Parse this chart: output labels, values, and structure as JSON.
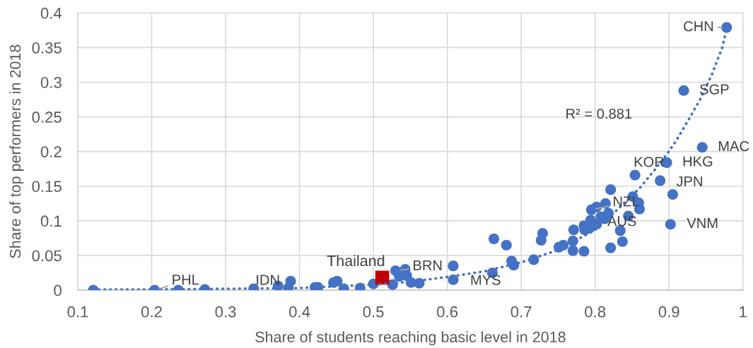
{
  "chart_data": {
    "type": "scatter",
    "xlabel": "Share of students reaching basic level in 2018",
    "ylabel": "Share of top performers in 2018",
    "xlim": [
      0.1,
      1
    ],
    "ylim": [
      0,
      0.4
    ],
    "xticks": [
      0.1,
      0.2,
      0.3,
      0.4,
      0.5,
      0.6,
      0.7,
      0.8,
      0.9,
      1
    ],
    "yticks": [
      0,
      0.05,
      0.1,
      0.15,
      0.2,
      0.25,
      0.3,
      0.35,
      0.4
    ],
    "grid": true,
    "marker": "circle",
    "series": [
      {
        "type": "scatter",
        "color": "#4472c4",
        "x": [
          0.121,
          0.204,
          0.236,
          0.272,
          0.338,
          0.371,
          0.385,
          0.388,
          0.421,
          0.425,
          0.446,
          0.451,
          0.46,
          0.482,
          0.5,
          0.526,
          0.53,
          0.535,
          0.543,
          0.545,
          0.551,
          0.562,
          0.608,
          0.608,
          0.661,
          0.663,
          0.68,
          0.687,
          0.69,
          0.717,
          0.727,
          0.729,
          0.751,
          0.757,
          0.77,
          0.77,
          0.771,
          0.785,
          0.785,
          0.786,
          0.792,
          0.794,
          0.802,
          0.795,
          0.802,
          0.814,
          0.808,
          0.813,
          0.818,
          0.821,
          0.821,
          0.834,
          0.837,
          0.845,
          0.851,
          0.859,
          0.86,
          0.854,
          0.888,
          0.905,
          0.902,
          0.897,
          0.945,
          0.92,
          0.978
        ],
        "values": [
          0.0,
          0.0,
          0.0,
          0.001,
          0.002,
          0.006,
          0.003,
          0.013,
          0.004,
          0.004,
          0.011,
          0.013,
          0.002,
          0.003,
          0.009,
          0.008,
          0.028,
          0.02,
          0.03,
          0.021,
          0.011,
          0.01,
          0.035,
          0.015,
          0.025,
          0.074,
          0.065,
          0.042,
          0.036,
          0.044,
          0.072,
          0.082,
          0.062,
          0.065,
          0.071,
          0.057,
          0.087,
          0.056,
          0.093,
          0.087,
          0.089,
          0.101,
          0.095,
          0.116,
          0.12,
          0.125,
          0.106,
          0.103,
          0.111,
          0.145,
          0.061,
          0.086,
          0.07,
          0.107,
          0.135,
          0.126,
          0.117,
          0.166,
          0.158,
          0.138,
          0.095,
          0.184,
          0.206,
          0.288,
          0.379
        ]
      },
      {
        "type": "scatter",
        "name": "Thailand",
        "color": "#c00000",
        "marker": "square",
        "x": [
          0.512
        ],
        "values": [
          0.018
        ]
      },
      {
        "type": "line",
        "color": "#4472c4",
        "line_style": "dotted",
        "marker": "none",
        "x": [
          0.121,
          0.2,
          0.3,
          0.4,
          0.5,
          0.55,
          0.6,
          0.65,
          0.7,
          0.75,
          0.8,
          0.827,
          0.861,
          0.881,
          0.897,
          0.91,
          0.926,
          0.942,
          0.958,
          0.972,
          0.978
        ],
        "values": [
          0.001,
          0.001,
          0.002,
          0.003,
          0.008,
          0.012,
          0.019,
          0.027,
          0.04,
          0.058,
          0.087,
          0.113,
          0.148,
          0.174,
          0.196,
          0.216,
          0.245,
          0.275,
          0.311,
          0.35,
          0.377
        ]
      }
    ],
    "annotations": [
      {
        "text": "CHN",
        "x": 0.978,
        "y": 0.379
      },
      {
        "text": "SGP",
        "x": 0.92,
        "y": 0.288
      },
      {
        "text": "MAC",
        "x": 0.945,
        "y": 0.206
      },
      {
        "text": "KOR",
        "x": 0.854,
        "y": 0.166
      },
      {
        "text": "HKG",
        "x": 0.897,
        "y": 0.184
      },
      {
        "text": "JPN",
        "x": 0.905,
        "y": 0.138
      },
      {
        "text": "NZL",
        "x": 0.795,
        "y": 0.116
      },
      {
        "text": "AUS",
        "x": 0.808,
        "y": 0.106
      },
      {
        "text": "VNM",
        "x": 0.902,
        "y": 0.095
      },
      {
        "text": "BRN",
        "x": 0.53,
        "y": 0.028
      },
      {
        "text": "MYS",
        "x": 0.608,
        "y": 0.015
      },
      {
        "text": "IDN",
        "x": 0.388,
        "y": 0.013
      },
      {
        "text": "PHL",
        "x": 0.204,
        "y": 0.0
      },
      "R² = 0.881"
    ]
  }
}
